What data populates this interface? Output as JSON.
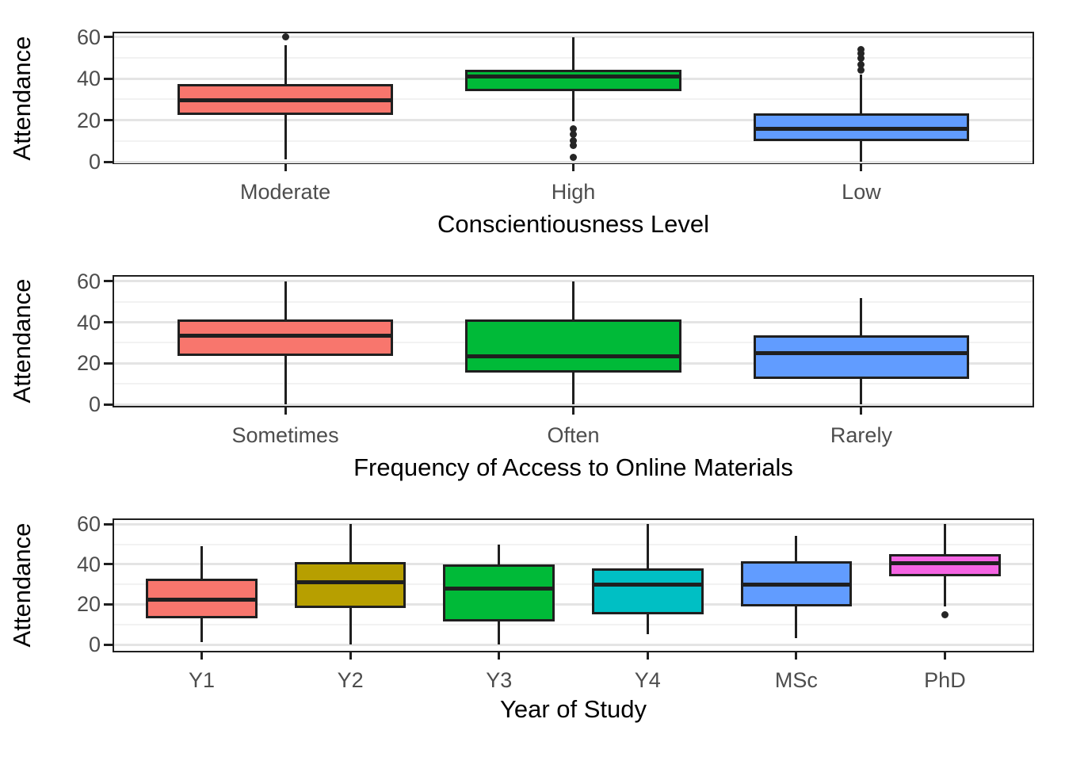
{
  "figure": {
    "background": "#ffffff",
    "colors": {
      "panel_border": "#1f1f1f",
      "grid_major": "#e4e4e4",
      "grid_minor": "#f2f2f2",
      "axis_tick_text": "#4d4d4d",
      "axis_title_text": "#000000",
      "box_outline": "#1f1f1f",
      "median_line": "#1f1f1f",
      "outlier_point": "#252525"
    }
  },
  "chart_data": [
    {
      "type": "boxplot",
      "title": "",
      "xlabel": "Conscientiousness Level",
      "ylabel": "Attendance",
      "ylim": [
        -2,
        63
      ],
      "yticks": [
        0,
        20,
        40,
        60
      ],
      "yminor": [
        10,
        30,
        50
      ],
      "grid": true,
      "categories": [
        "Moderate",
        "High",
        "Low"
      ],
      "boxes": [
        {
          "category": "Moderate",
          "color": "#F8766D",
          "whisker_low": 1,
          "q1": 22.5,
          "median": 29.5,
          "q3": 37.5,
          "whisker_high": 56,
          "outliers": [
            60
          ]
        },
        {
          "category": "High",
          "color": "#00BA38",
          "whisker_low": 19.5,
          "q1": 34,
          "median": 41,
          "q3": 44.5,
          "whisker_high": 60,
          "outliers": [
            16,
            13,
            10,
            8,
            2
          ]
        },
        {
          "category": "Low",
          "color": "#619CFF",
          "whisker_low": 0,
          "q1": 10,
          "median": 16,
          "q3": 23.5,
          "whisker_high": 42,
          "outliers": [
            44,
            47,
            50,
            52,
            54
          ]
        }
      ]
    },
    {
      "type": "boxplot",
      "title": "",
      "xlabel": "Frequency of Access to Online Materials",
      "ylabel": "Attendance",
      "ylim": [
        -2,
        63
      ],
      "yticks": [
        0,
        20,
        40,
        60
      ],
      "yminor": [
        10,
        30,
        50
      ],
      "grid": true,
      "categories": [
        "Sometimes",
        "Often",
        "Rarely"
      ],
      "boxes": [
        {
          "category": "Sometimes",
          "color": "#F8766D",
          "whisker_low": 0,
          "q1": 23.5,
          "median": 33.5,
          "q3": 41.5,
          "whisker_high": 60,
          "outliers": []
        },
        {
          "category": "Often",
          "color": "#00BA38",
          "whisker_low": 0,
          "q1": 15.5,
          "median": 23.5,
          "q3": 41.5,
          "whisker_high": 60,
          "outliers": []
        },
        {
          "category": "Rarely",
          "color": "#619CFF",
          "whisker_low": 0,
          "q1": 12.5,
          "median": 25,
          "q3": 33.5,
          "whisker_high": 52,
          "outliers": []
        }
      ]
    },
    {
      "type": "boxplot",
      "title": "",
      "xlabel": "Year of Study",
      "ylabel": "Attendance",
      "ylim": [
        -2,
        63
      ],
      "yticks": [
        0,
        20,
        40,
        60
      ],
      "yminor": [
        10,
        30,
        50
      ],
      "grid": true,
      "categories": [
        "Y1",
        "Y2",
        "Y3",
        "Y4",
        "MSc",
        "PhD"
      ],
      "boxes": [
        {
          "category": "Y1",
          "color": "#F8766D",
          "whisker_low": 1,
          "q1": 13,
          "median": 22.5,
          "q3": 33,
          "whisker_high": 49,
          "outliers": []
        },
        {
          "category": "Y2",
          "color": "#B79F00",
          "whisker_low": 0,
          "q1": 18,
          "median": 31,
          "q3": 41,
          "whisker_high": 60,
          "outliers": []
        },
        {
          "category": "Y3",
          "color": "#00BA38",
          "whisker_low": 0,
          "q1": 11.5,
          "median": 28,
          "q3": 40,
          "whisker_high": 50,
          "outliers": []
        },
        {
          "category": "Y4",
          "color": "#00BFC4",
          "whisker_low": 5,
          "q1": 15,
          "median": 30,
          "q3": 38,
          "whisker_high": 60,
          "outliers": []
        },
        {
          "category": "MSc",
          "color": "#619CFF",
          "whisker_low": 3,
          "q1": 19,
          "median": 30,
          "q3": 41.5,
          "whisker_high": 54,
          "outliers": []
        },
        {
          "category": "PhD",
          "color": "#F564E3",
          "whisker_low": 19,
          "q1": 34,
          "median": 40.5,
          "q3": 45,
          "whisker_high": 60,
          "outliers": [
            15
          ]
        }
      ]
    }
  ]
}
